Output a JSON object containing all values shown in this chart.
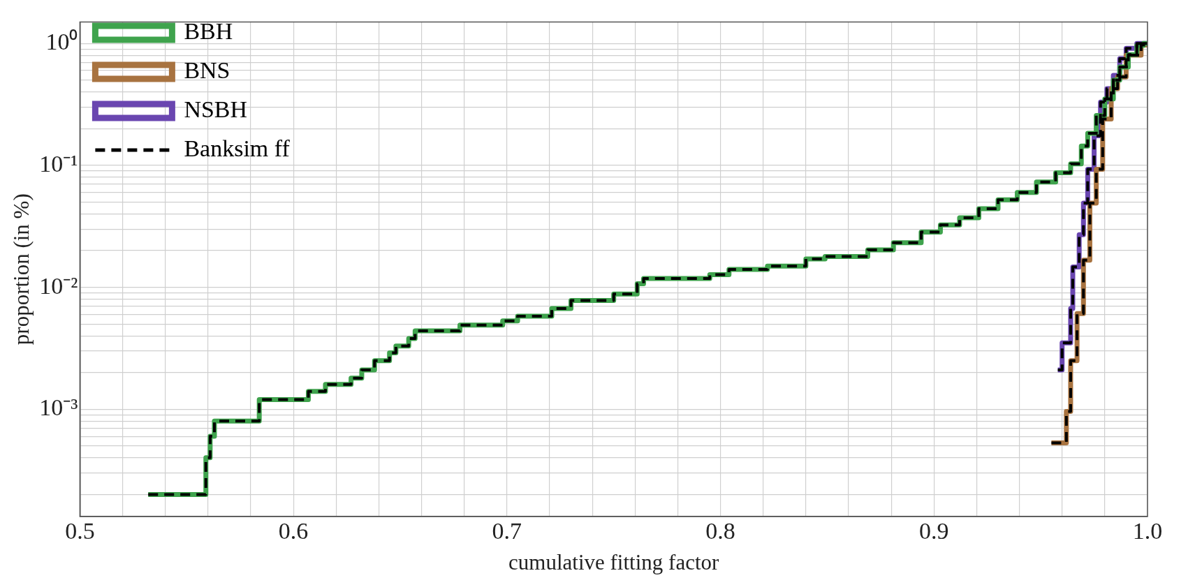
{
  "chart_data": {
    "type": "step",
    "xlabel": "cumulative fitting factor",
    "ylabel": "proportion (in %)",
    "log": "y",
    "grid": true,
    "legend": "top left",
    "marker": "none",
    "xlim": [
      0.5,
      1
    ],
    "ylim": [
      0.000132,
      1.5
    ],
    "xticks": [
      0.5,
      {
        "value": 0.52,
        "label": null
      },
      {
        "value": 0.54,
        "label": null
      },
      {
        "value": 0.56,
        "label": null
      },
      {
        "value": 0.58,
        "label": null
      },
      0.6,
      {
        "value": 0.62,
        "label": null
      },
      {
        "value": 0.64,
        "label": null
      },
      {
        "value": 0.66,
        "label": null
      },
      {
        "value": 0.68,
        "label": null
      },
      0.7,
      {
        "value": 0.72,
        "label": null
      },
      {
        "value": 0.74,
        "label": null
      },
      {
        "value": 0.76,
        "label": null
      },
      {
        "value": 0.78,
        "label": null
      },
      0.8,
      {
        "value": 0.82,
        "label": null
      },
      {
        "value": 0.84,
        "label": null
      },
      {
        "value": 0.86,
        "label": null
      },
      {
        "value": 0.88,
        "label": null
      },
      0.9,
      {
        "value": 0.92,
        "label": null
      },
      {
        "value": 0.94,
        "label": null
      },
      {
        "value": 0.96,
        "label": null
      },
      {
        "value": 0.98,
        "label": null
      },
      {
        "value": 1,
        "label": "1.0"
      }
    ],
    "yticks": [
      {
        "value": 0.0002,
        "label": null
      },
      {
        "value": 0.0003,
        "label": null
      },
      {
        "value": 0.0004,
        "label": null
      },
      {
        "value": 0.0005,
        "label": null
      },
      {
        "value": 0.0006,
        "label": null
      },
      {
        "value": 0.0007,
        "label": null
      },
      {
        "value": 0.0008,
        "label": null
      },
      {
        "value": 0.0009,
        "label": null
      },
      {
        "value": 0.001,
        "label": "10⁻³"
      },
      {
        "value": 0.002,
        "label": null
      },
      {
        "value": 0.003,
        "label": null
      },
      {
        "value": 0.004,
        "label": null
      },
      {
        "value": 0.005,
        "label": null
      },
      {
        "value": 0.006,
        "label": null
      },
      {
        "value": 0.007,
        "label": null
      },
      {
        "value": 0.008,
        "label": null
      },
      {
        "value": 0.009,
        "label": null
      },
      {
        "value": 0.01,
        "label": "10⁻²"
      },
      {
        "value": 0.02,
        "label": null
      },
      {
        "value": 0.03,
        "label": null
      },
      {
        "value": 0.04,
        "label": null
      },
      {
        "value": 0.05,
        "label": null
      },
      {
        "value": 0.06,
        "label": null
      },
      {
        "value": 0.07,
        "label": null
      },
      {
        "value": 0.08,
        "label": null
      },
      {
        "value": 0.09,
        "label": null
      },
      {
        "value": 0.1,
        "label": "10⁻¹"
      },
      {
        "value": 0.2,
        "label": null
      },
      {
        "value": 0.3,
        "label": null
      },
      {
        "value": 0.4,
        "label": null
      },
      {
        "value": 0.5,
        "label": null
      },
      {
        "value": 0.6,
        "label": null
      },
      {
        "value": 0.7,
        "label": null
      },
      {
        "value": 0.8,
        "label": null
      },
      {
        "value": 0.9,
        "label": null
      },
      {
        "value": 1,
        "label": "10⁰"
      }
    ],
    "series": [
      {
        "name": "BBH",
        "type": "step",
        "color": "#3fa34d",
        "line_style": "solid",
        "x": [
          0.532,
          0.559,
          0.561,
          0.563,
          0.584,
          0.607,
          0.615,
          0.627,
          0.632,
          0.638,
          0.645,
          0.648,
          0.654,
          0.657,
          0.678,
          0.698,
          0.705,
          0.721,
          0.73,
          0.75,
          0.761,
          0.764,
          0.795,
          0.804,
          0.822,
          0.84,
          0.849,
          0.869,
          0.881,
          0.894,
          0.903,
          0.912,
          0.921,
          0.93,
          0.939,
          0.948,
          0.957,
          0.964,
          0.969,
          0.972,
          0.976,
          0.98,
          0.984,
          0.987,
          0.991,
          0.995,
          0.998,
          1
        ],
        "values": [
          0.0002,
          0.0004,
          0.0006,
          0.0008,
          0.0012,
          0.0014,
          0.0016,
          0.0018,
          0.0021,
          0.0025,
          0.0029,
          0.0033,
          0.0038,
          0.0044,
          0.0049,
          0.0053,
          0.0058,
          0.0067,
          0.0078,
          0.0088,
          0.0107,
          0.0118,
          0.0127,
          0.014,
          0.0149,
          0.0171,
          0.0179,
          0.0203,
          0.0232,
          0.0284,
          0.0325,
          0.0372,
          0.0441,
          0.0522,
          0.06,
          0.073,
          0.087,
          0.103,
          0.144,
          0.183,
          0.256,
          0.35,
          0.5,
          0.64,
          0.81,
          0.96,
          1,
          1
        ]
      },
      {
        "name": "BNS",
        "type": "step",
        "color": "#a87340",
        "line_style": "solid",
        "x": [
          0.955,
          0.962,
          0.964,
          0.967,
          0.97,
          0.973,
          0.976,
          0.979,
          0.983,
          0.986,
          0.99,
          0.997,
          1
        ],
        "values": [
          0.00053,
          0.00096,
          0.0025,
          0.0061,
          0.0167,
          0.049,
          0.093,
          0.24,
          0.425,
          0.53,
          0.8,
          0.97,
          0.97
        ]
      },
      {
        "name": "NSBH",
        "type": "step",
        "color": "#6a46b0",
        "line_style": "solid",
        "x": [
          0.958,
          0.96,
          0.964,
          0.965,
          0.968,
          0.97,
          0.972,
          0.975,
          0.978,
          0.981,
          0.984,
          0.987,
          0.99,
          0.995,
          1
        ],
        "values": [
          0.0021,
          0.0035,
          0.0067,
          0.0147,
          0.027,
          0.049,
          0.093,
          0.175,
          0.33,
          0.425,
          0.547,
          0.75,
          0.91,
          1,
          1
        ]
      },
      {
        "name": "Banksim ff",
        "type": "step",
        "color": "#000000",
        "line_style": "dashed",
        "x": [
          0.532,
          0.559,
          0.561,
          0.563,
          0.584,
          0.607,
          0.615,
          0.627,
          0.632,
          0.638,
          0.645,
          0.648,
          0.654,
          0.657,
          0.678,
          0.698,
          0.705,
          0.721,
          0.73,
          0.75,
          0.761,
          0.764,
          0.795,
          0.804,
          0.822,
          0.84,
          0.849,
          0.869,
          0.881,
          0.894,
          0.903,
          0.912,
          0.921,
          0.93,
          0.939,
          0.948,
          0.957,
          0.964,
          0.969,
          0.972,
          0.976,
          0.98,
          0.984,
          0.987,
          0.991,
          0.995,
          0.998,
          1
        ],
        "values": [
          0.0002,
          0.0004,
          0.0006,
          0.0008,
          0.0012,
          0.0014,
          0.0016,
          0.0018,
          0.0021,
          0.0025,
          0.0029,
          0.0033,
          0.0038,
          0.0044,
          0.0049,
          0.0053,
          0.0058,
          0.0067,
          0.0078,
          0.0088,
          0.0107,
          0.0118,
          0.0127,
          0.014,
          0.0149,
          0.0171,
          0.0179,
          0.0203,
          0.0232,
          0.0284,
          0.0325,
          0.0372,
          0.0441,
          0.0522,
          0.06,
          0.073,
          0.087,
          0.103,
          0.144,
          0.183,
          0.256,
          0.35,
          0.5,
          0.64,
          0.81,
          0.96,
          1,
          1
        ]
      },
      {
        "type": "step",
        "color": "#000000",
        "line_style": "dashed",
        "x": [
          0.955,
          0.962,
          0.964,
          0.967,
          0.97,
          0.973,
          0.976,
          0.979,
          0.983,
          0.986,
          0.99,
          0.997,
          1
        ],
        "values": [
          0.00053,
          0.00096,
          0.0025,
          0.0061,
          0.0167,
          0.049,
          0.093,
          0.24,
          0.425,
          0.53,
          0.8,
          0.97,
          0.97
        ]
      },
      {
        "type": "step",
        "color": "#000000",
        "line_style": "dashed",
        "x": [
          0.958,
          0.96,
          0.964,
          0.965,
          0.968,
          0.97,
          0.972,
          0.975,
          0.978,
          0.981,
          0.984,
          0.987,
          0.99,
          0.995,
          1
        ],
        "values": [
          0.0021,
          0.0035,
          0.0067,
          0.0147,
          0.027,
          0.049,
          0.093,
          0.175,
          0.33,
          0.425,
          0.547,
          0.75,
          0.91,
          1,
          1
        ]
      }
    ]
  }
}
